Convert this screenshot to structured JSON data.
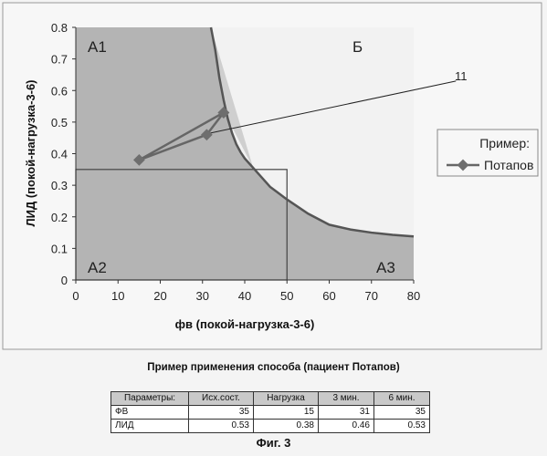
{
  "chart_data": {
    "type": "line",
    "xlabel": "фв (покой-нагрузка-3-6)",
    "ylabel": "ЛИД (покой-нагрузка-3-6)",
    "xlim": [
      0,
      80
    ],
    "ylim": [
      0,
      0.8
    ],
    "xticks": [
      "0",
      "10",
      "20",
      "30",
      "40",
      "50",
      "60",
      "70",
      "80"
    ],
    "yticks": [
      "0",
      "0.1",
      "0.2",
      "0.3",
      "0.4",
      "0.5",
      "0.6",
      "0.7",
      "0.8"
    ],
    "grid": false,
    "legend": {
      "title": "Пример:",
      "position": "right"
    },
    "series": [
      {
        "name": "Потапов",
        "x": [
          35,
          15,
          31,
          35
        ],
        "y": [
          0.53,
          0.38,
          0.46,
          0.53
        ]
      }
    ],
    "boundary_curve": {
      "x": [
        32,
        33,
        34,
        35,
        36,
        37,
        38,
        39,
        40,
        41,
        42,
        44,
        46,
        48,
        50,
        55,
        60,
        65,
        70,
        75,
        80
      ],
      "y": [
        0.8,
        0.73,
        0.64,
        0.57,
        0.51,
        0.465,
        0.43,
        0.405,
        0.385,
        0.37,
        0.355,
        0.325,
        0.295,
        0.275,
        0.255,
        0.21,
        0.175,
        0.16,
        0.15,
        0.143,
        0.138
      ]
    },
    "regions": {
      "a1": {
        "label": "А1",
        "x": [
          0,
          32
        ],
        "y": [
          0.35,
          0.8
        ]
      },
      "a2": {
        "label": "А2",
        "x": [
          0,
          50
        ],
        "y": [
          0,
          0.35
        ]
      },
      "a3": {
        "label": "А3",
        "x": [
          50,
          80
        ],
        "y": [
          0,
          0.25
        ]
      },
      "b": {
        "label": "Б"
      }
    },
    "annotation": {
      "label": "11",
      "from": [
        30,
        0.46
      ],
      "to": [
        90,
        0.63
      ]
    }
  },
  "caption": "Пример применения способа (пациент Потапов)",
  "table": {
    "headers": [
      "Параметры:",
      "Исх.сост.",
      "Нагрузка",
      "3 мин.",
      "6 мин."
    ],
    "rows": [
      [
        "ФВ",
        "35",
        "15",
        "31",
        "35"
      ],
      [
        "ЛИД",
        "0.53",
        "0.38",
        "0.46",
        "0.53"
      ]
    ]
  },
  "figure_label": "Фиг. 3",
  "colors": {
    "region_dark": "#b4b4b4",
    "region_light": "#cfcfcf",
    "curve": "#555555",
    "marker": "#6e6e6e",
    "frame": "#9a9a9a"
  }
}
